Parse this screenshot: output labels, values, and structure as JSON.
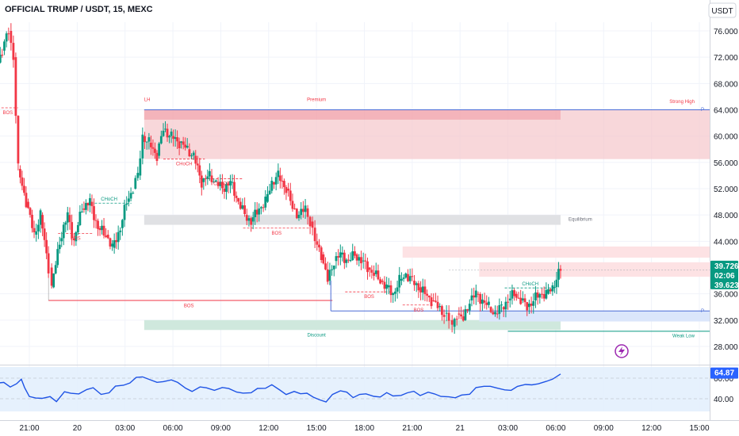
{
  "header": {
    "title": "OFFICIAL TRUMP / USDT, 15, MEXC"
  },
  "currency_button": "USDT",
  "colors": {
    "up": "#089981",
    "down": "#f23645",
    "rsi_line": "#1e53e5",
    "supply": "#f5c6ca",
    "demand": "#cfe8dd",
    "equilibrium": "#e0e1e4"
  },
  "chart_data": [
    {
      "type": "candlestick",
      "ylim": [
        26.0,
        78.0
      ],
      "y_ticks": [
        "76.000",
        "72.000",
        "68.000",
        "64.000",
        "60.000",
        "56.000",
        "52.000",
        "48.000",
        "44.000",
        "36.000",
        "32.000",
        "28.000"
      ],
      "x_ticks": [
        "21:00",
        "20",
        "03:00",
        "06:00",
        "09:00",
        "12:00",
        "15:00",
        "18:00",
        "21:00",
        "21",
        "03:00",
        "06:00",
        "09:00",
        "12:00",
        "15:00"
      ],
      "x_tick_times": [
        0,
        3,
        6,
        9,
        12,
        15,
        18,
        21,
        24,
        27,
        30,
        33,
        36,
        39,
        42
      ],
      "price_path": [
        [
          -4.6,
          65
        ],
        [
          -4.2,
          63
        ],
        [
          -3.9,
          69
        ],
        [
          -3.4,
          71
        ],
        [
          -3.0,
          70
        ],
        [
          -2.6,
          66
        ],
        [
          -2.2,
          70
        ],
        [
          -1.7,
          73
        ],
        [
          -1.3,
          76
        ],
        [
          -1.0,
          72
        ],
        [
          -0.7,
          55
        ],
        [
          -0.2,
          50
        ],
        [
          0.3,
          45
        ],
        [
          0.7,
          48
        ],
        [
          1.2,
          40
        ],
        [
          1.4,
          37
        ],
        [
          1.9,
          44
        ],
        [
          2.4,
          48
        ],
        [
          2.8,
          44
        ],
        [
          3.3,
          49
        ],
        [
          3.8,
          50
        ],
        [
          4.3,
          46
        ],
        [
          4.8,
          45
        ],
        [
          5.2,
          43
        ],
        [
          5.7,
          46
        ],
        [
          6.1,
          50
        ],
        [
          6.5,
          52
        ],
        [
          6.8,
          54
        ],
        [
          7.1,
          60
        ],
        [
          7.5,
          59
        ],
        [
          8.0,
          57
        ],
        [
          8.4,
          61
        ],
        [
          8.9,
          60
        ],
        [
          9.4,
          59
        ],
        [
          9.9,
          58
        ],
        [
          10.3,
          57
        ],
        [
          10.8,
          53
        ],
        [
          11.3,
          54
        ],
        [
          11.7,
          53
        ],
        [
          12.1,
          52
        ],
        [
          12.6,
          53
        ],
        [
          13.1,
          50
        ],
        [
          13.5,
          48
        ],
        [
          13.9,
          47
        ],
        [
          14.4,
          49
        ],
        [
          14.8,
          50
        ],
        [
          15.2,
          53
        ],
        [
          15.6,
          54
        ],
        [
          16.1,
          52
        ],
        [
          16.5,
          49
        ],
        [
          16.9,
          48
        ],
        [
          17.3,
          49
        ],
        [
          17.6,
          47
        ],
        [
          17.9,
          44
        ],
        [
          18.3,
          42
        ],
        [
          18.7,
          38
        ],
        [
          19.1,
          41
        ],
        [
          19.5,
          42
        ],
        [
          20.0,
          41
        ],
        [
          20.4,
          42
        ],
        [
          20.8,
          41
        ],
        [
          21.2,
          40
        ],
        [
          21.6,
          39
        ],
        [
          22.0,
          38
        ],
        [
          22.4,
          37
        ],
        [
          22.8,
          36
        ],
        [
          23.2,
          38
        ],
        [
          23.6,
          39
        ],
        [
          24.0,
          38
        ],
        [
          24.4,
          37
        ],
        [
          24.8,
          36
        ],
        [
          25.2,
          35
        ],
        [
          25.6,
          34
        ],
        [
          26.0,
          33
        ],
        [
          26.3,
          32
        ],
        [
          26.5,
          31
        ],
        [
          26.8,
          33
        ],
        [
          27.2,
          32
        ],
        [
          27.6,
          35
        ],
        [
          28.0,
          36
        ],
        [
          28.4,
          35
        ],
        [
          28.8,
          34
        ],
        [
          29.2,
          33
        ],
        [
          29.6,
          34
        ],
        [
          30.0,
          35
        ],
        [
          30.4,
          36
        ],
        [
          30.8,
          35
        ],
        [
          31.2,
          34
        ],
        [
          31.6,
          35
        ],
        [
          32.0,
          36
        ],
        [
          32.4,
          36
        ],
        [
          32.8,
          37
        ],
        [
          33.3,
          39.7
        ]
      ],
      "levels": {
        "strong_high": 64.0,
        "weak_low": 30.3,
        "hl": 35.0,
        "bos_main": 35.0
      },
      "zones": [
        {
          "label": "Premium",
          "from": 56.5,
          "to": 64.0
        },
        {
          "label": "Equilibrium",
          "from": 46.5,
          "to": 48.0
        },
        {
          "label": "Discount",
          "from": 30.5,
          "to": 32.0
        }
      ],
      "labels": {
        "strong_high": "Strong High",
        "weak_low": "Weak Low",
        "lh": "LH",
        "hl": "HL",
        "bos": "BOS",
        "choch": "CHoCH",
        "p": "P"
      },
      "last_price": "39.726",
      "countdown": "02:06",
      "prev_price": "39.623"
    },
    {
      "type": "line",
      "name": "RSI",
      "ylim": [
        32,
        72
      ],
      "y_ticks": [
        "60.00",
        "40.00"
      ],
      "bands": [
        40,
        60
      ],
      "last_value": "64.87",
      "values": [
        [
          -4.6,
          52
        ],
        [
          -4.1,
          49
        ],
        [
          -3.6,
          50
        ],
        [
          -3.1,
          47
        ],
        [
          -2.6,
          55
        ],
        [
          -2.1,
          55
        ],
        [
          -1.6,
          55
        ],
        [
          -1.2,
          52
        ],
        [
          -0.8,
          55
        ],
        [
          -0.5,
          58
        ],
        [
          -0.3,
          51
        ],
        [
          0.0,
          43
        ],
        [
          0.4,
          40
        ],
        [
          0.8,
          40
        ],
        [
          1.3,
          43
        ],
        [
          1.7,
          37
        ],
        [
          2.2,
          46
        ],
        [
          2.6,
          46
        ],
        [
          3.1,
          45
        ],
        [
          3.6,
          48
        ],
        [
          4.0,
          51
        ],
        [
          4.5,
          45
        ],
        [
          5.0,
          45
        ],
        [
          5.4,
          52
        ],
        [
          5.9,
          54
        ],
        [
          6.3,
          55
        ],
        [
          6.7,
          60
        ],
        [
          7.1,
          62
        ],
        [
          7.5,
          59
        ],
        [
          8.0,
          55
        ],
        [
          8.4,
          57
        ],
        [
          8.9,
          59
        ],
        [
          9.3,
          55
        ],
        [
          9.8,
          50
        ],
        [
          10.2,
          48
        ],
        [
          10.7,
          51
        ],
        [
          11.1,
          50
        ],
        [
          11.6,
          49
        ],
        [
          12.1,
          51
        ],
        [
          12.5,
          49
        ],
        [
          13.0,
          47
        ],
        [
          13.4,
          46
        ],
        [
          13.9,
          45
        ],
        [
          14.3,
          50
        ],
        [
          14.8,
          51
        ],
        [
          15.2,
          53
        ],
        [
          15.7,
          48
        ],
        [
          16.1,
          45
        ],
        [
          16.6,
          47
        ],
        [
          17.0,
          44
        ],
        [
          17.4,
          46
        ],
        [
          17.8,
          42
        ],
        [
          18.2,
          38
        ],
        [
          18.6,
          37
        ],
        [
          19.0,
          45
        ],
        [
          19.5,
          47
        ],
        [
          19.9,
          46
        ],
        [
          20.3,
          42
        ],
        [
          20.7,
          44
        ],
        [
          21.1,
          44
        ],
        [
          21.6,
          43
        ],
        [
          22.0,
          42
        ],
        [
          22.4,
          45
        ],
        [
          22.8,
          43
        ],
        [
          23.3,
          44
        ],
        [
          23.7,
          45
        ],
        [
          24.1,
          47
        ],
        [
          24.5,
          44
        ],
        [
          25.0,
          46
        ],
        [
          25.4,
          44
        ],
        [
          25.8,
          43
        ],
        [
          26.3,
          42
        ],
        [
          26.7,
          40
        ],
        [
          27.1,
          44
        ],
        [
          27.6,
          45
        ],
        [
          28.0,
          50
        ],
        [
          28.5,
          52
        ],
        [
          28.9,
          53
        ],
        [
          29.3,
          50
        ],
        [
          29.8,
          48
        ],
        [
          30.2,
          49
        ],
        [
          30.6,
          52
        ],
        [
          31.1,
          53
        ],
        [
          31.5,
          54
        ],
        [
          31.9,
          55
        ],
        [
          32.4,
          56
        ],
        [
          32.8,
          59
        ],
        [
          33.3,
          64.87
        ]
      ]
    }
  ]
}
